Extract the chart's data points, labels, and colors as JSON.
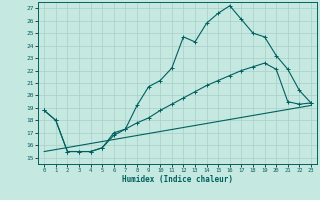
{
  "xlabel": "Humidex (Indice chaleur)",
  "bg_color": "#c5e8e0",
  "line_color": "#006060",
  "grid_color": "#a8cfc8",
  "xlim": [
    -0.5,
    23.5
  ],
  "ylim": [
    14.5,
    27.5
  ],
  "xticks": [
    0,
    1,
    2,
    3,
    4,
    5,
    6,
    7,
    8,
    9,
    10,
    11,
    12,
    13,
    14,
    15,
    16,
    17,
    18,
    19,
    20,
    21,
    22,
    23
  ],
  "yticks": [
    15,
    16,
    17,
    18,
    19,
    20,
    21,
    22,
    23,
    24,
    25,
    26,
    27
  ],
  "line1_x": [
    0,
    1,
    2,
    3,
    4,
    5,
    6,
    7,
    8,
    9,
    10,
    11,
    12,
    13,
    14,
    15,
    16,
    17,
    18,
    19,
    20,
    21,
    22,
    23
  ],
  "line1_y": [
    18.8,
    18.0,
    15.5,
    15.5,
    15.5,
    15.8,
    17.0,
    17.3,
    19.2,
    20.7,
    21.2,
    22.2,
    24.7,
    24.3,
    25.8,
    26.6,
    27.2,
    26.1,
    25.0,
    24.7,
    23.2,
    22.1,
    20.4,
    19.4
  ],
  "line2_x": [
    0,
    1,
    2,
    3,
    4,
    5,
    6,
    7,
    8,
    9,
    10,
    11,
    12,
    13,
    14,
    15,
    16,
    17,
    18,
    19,
    20,
    21,
    22,
    23
  ],
  "line2_y": [
    18.8,
    18.0,
    15.5,
    15.5,
    15.5,
    15.8,
    16.8,
    17.3,
    17.8,
    18.2,
    18.8,
    19.3,
    19.8,
    20.3,
    20.8,
    21.2,
    21.6,
    22.0,
    22.3,
    22.6,
    22.1,
    19.5,
    19.3,
    19.4
  ],
  "line3_x": [
    0,
    23
  ],
  "line3_y": [
    15.5,
    19.2
  ]
}
